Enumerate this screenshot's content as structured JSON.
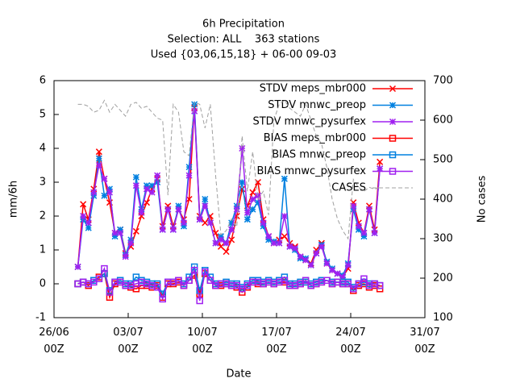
{
  "chart_data": {
    "type": "line",
    "title": "6h Precipitation",
    "subtitle": [
      "Selection: ALL    363 stations",
      "Used {03,06,15,18} + 06-00 09-03"
    ],
    "xlabel": "Date",
    "ylabel": "mm/6h",
    "y2label": "No cases",
    "xlim": [
      0,
      35
    ],
    "xticks": [
      {
        "value": 0,
        "label": "26/06\n00Z"
      },
      {
        "value": 7,
        "label": "03/07\n00Z"
      },
      {
        "value": 14,
        "label": "10/07\n00Z"
      },
      {
        "value": 21,
        "label": "17/07\n00Z"
      },
      {
        "value": 28,
        "label": "24/07\n00Z"
      },
      {
        "value": 35,
        "label": "31/07\n00Z"
      }
    ],
    "ylim": [
      -1,
      6
    ],
    "yticks": [
      -1,
      0,
      1,
      2,
      3,
      4,
      5,
      6
    ],
    "y2lim": [
      100,
      700
    ],
    "y2ticks": [
      100,
      200,
      300,
      400,
      500,
      600,
      700
    ],
    "legend": "upper right",
    "x": [
      2.25,
      2.75,
      3.25,
      3.75,
      4.25,
      4.75,
      5.25,
      5.75,
      6.25,
      6.75,
      7.25,
      7.75,
      8.25,
      8.75,
      9.25,
      9.75,
      10.25,
      10.75,
      11.25,
      11.75,
      12.25,
      12.75,
      13.25,
      13.75,
      14.25,
      14.75,
      15.25,
      15.75,
      16.25,
      16.75,
      17.25,
      17.75,
      18.25,
      18.75,
      19.25,
      19.75,
      20.25,
      20.75,
      21.25,
      21.75,
      22.25,
      22.75,
      23.25,
      23.75,
      24.25,
      24.75,
      25.25,
      25.75,
      26.25,
      26.75,
      27.25,
      27.75,
      28.25,
      28.75,
      29.25,
      29.75,
      30.25,
      30.75
    ],
    "series": [
      {
        "name": "STDV meps_mbr000",
        "color": "#ff0000",
        "marker": "x",
        "values": [
          0.5,
          2.35,
          1.9,
          2.8,
          3.9,
          3.1,
          2.4,
          1.5,
          1.6,
          0.9,
          1.1,
          1.55,
          2.0,
          2.4,
          2.8,
          3.1,
          1.7,
          2.3,
          1.7,
          2.2,
          1.9,
          2.5,
          5.2,
          2.0,
          1.8,
          2.0,
          1.5,
          1.1,
          0.95,
          1.3,
          2.0,
          2.8,
          2.3,
          2.7,
          3.0,
          1.9,
          1.4,
          1.2,
          1.3,
          1.4,
          1.2,
          1.1,
          0.8,
          0.7,
          0.6,
          1.0,
          1.2,
          0.6,
          0.4,
          0.3,
          0.2,
          0.45,
          2.4,
          1.8,
          1.5,
          2.3,
          1.6,
          3.6
        ]
      },
      {
        "name": "STDV mnwc_preop",
        "color": "#0080e0",
        "marker": "star",
        "values": [
          0.5,
          1.9,
          1.65,
          2.6,
          3.7,
          2.6,
          2.8,
          1.4,
          1.6,
          0.85,
          1.3,
          3.15,
          2.2,
          2.9,
          2.9,
          3.0,
          1.6,
          2.2,
          1.6,
          2.3,
          1.7,
          3.45,
          5.3,
          1.9,
          2.5,
          1.8,
          1.2,
          1.4,
          1.2,
          1.8,
          2.3,
          3.0,
          1.9,
          2.2,
          2.4,
          1.7,
          1.3,
          1.25,
          1.2,
          3.1,
          1.1,
          1.0,
          0.75,
          0.75,
          0.55,
          0.9,
          1.15,
          0.65,
          0.45,
          0.3,
          0.25,
          0.6,
          2.2,
          1.6,
          1.4,
          2.2,
          1.5,
          3.4
        ]
      },
      {
        "name": "STDV mnwc_pysurfex",
        "color": "#a020f0",
        "marker": "star",
        "values": [
          0.5,
          2.0,
          1.8,
          2.7,
          3.5,
          3.1,
          2.7,
          1.5,
          1.5,
          0.8,
          1.2,
          2.9,
          2.1,
          2.8,
          2.7,
          3.2,
          1.6,
          2.2,
          1.6,
          2.2,
          1.8,
          3.2,
          5.1,
          1.9,
          2.3,
          1.8,
          1.2,
          1.3,
          1.2,
          1.6,
          2.2,
          4.0,
          2.1,
          2.5,
          2.6,
          1.8,
          1.4,
          1.2,
          1.2,
          2.0,
          1.1,
          1.05,
          0.8,
          0.7,
          0.55,
          0.9,
          1.1,
          0.6,
          0.4,
          0.3,
          0.2,
          0.55,
          2.3,
          1.7,
          1.5,
          2.2,
          1.5,
          3.4
        ]
      },
      {
        "name": "BIAS meps_mbr000",
        "color": "#ff0000",
        "marker": "square",
        "values": [
          0.0,
          0.05,
          -0.05,
          0.1,
          0.2,
          0.3,
          -0.4,
          0.0,
          0.05,
          -0.05,
          -0.1,
          -0.15,
          -0.05,
          -0.05,
          -0.1,
          -0.05,
          -0.4,
          0.0,
          0.0,
          0.05,
          -0.05,
          0.1,
          0.25,
          -0.3,
          0.3,
          0.1,
          -0.05,
          -0.05,
          0.0,
          -0.05,
          -0.1,
          -0.25,
          -0.1,
          0.05,
          0.0,
          0.0,
          0.05,
          0.0,
          0.05,
          0.05,
          -0.05,
          -0.05,
          0.0,
          0.05,
          -0.05,
          0.0,
          0.05,
          0.1,
          0.0,
          0.05,
          0.0,
          0.0,
          -0.2,
          -0.05,
          0.0,
          -0.1,
          -0.05,
          -0.15
        ]
      },
      {
        "name": "BIAS mnwc_preop",
        "color": "#0080e0",
        "marker": "square",
        "values": [
          0.0,
          0.05,
          0.0,
          0.1,
          0.15,
          0.3,
          -0.2,
          0.05,
          0.1,
          0.0,
          0.0,
          0.2,
          0.1,
          0.05,
          0.0,
          0.0,
          -0.3,
          0.05,
          0.05,
          0.1,
          0.0,
          0.2,
          0.5,
          -0.2,
          0.4,
          0.2,
          0.0,
          0.0,
          0.05,
          0.0,
          0.0,
          -0.1,
          0.0,
          0.1,
          0.1,
          0.05,
          0.1,
          0.05,
          0.1,
          0.2,
          0.0,
          0.0,
          0.05,
          0.05,
          0.0,
          0.05,
          0.1,
          0.1,
          0.05,
          0.05,
          0.05,
          0.05,
          -0.1,
          0.0,
          0.05,
          0.0,
          0.0,
          -0.05
        ]
      },
      {
        "name": "BIAS mnwc_pysurfex",
        "color": "#a020f0",
        "marker": "square",
        "values": [
          0.0,
          0.05,
          0.0,
          0.05,
          0.15,
          0.45,
          -0.25,
          0.05,
          0.05,
          -0.05,
          -0.05,
          0.0,
          0.05,
          0.0,
          -0.05,
          -0.1,
          -0.45,
          0.05,
          0.05,
          0.1,
          -0.05,
          0.1,
          0.4,
          -0.5,
          0.35,
          0.1,
          -0.05,
          0.0,
          0.0,
          -0.05,
          -0.05,
          -0.15,
          -0.05,
          0.05,
          0.05,
          0.0,
          0.05,
          0.0,
          0.05,
          0.1,
          -0.05,
          -0.05,
          0.0,
          0.1,
          -0.05,
          0.0,
          0.05,
          0.1,
          0.0,
          0.05,
          0.0,
          0.0,
          -0.15,
          0.0,
          0.15,
          -0.05,
          0.0,
          -0.05
        ]
      },
      {
        "name": "CASES",
        "color": "#a0a0a0",
        "dash": true,
        "axis": "y2",
        "values": [
          640,
          640,
          635,
          620,
          625,
          650,
          620,
          640,
          625,
          610,
          640,
          645,
          630,
          635,
          620,
          605,
          600,
          410,
          640,
          620,
          520,
          510,
          645,
          640,
          580,
          640,
          460,
          310,
          320,
          350,
          330,
          560,
          420,
          520,
          400,
          420,
          360,
          600,
          640,
          650,
          630,
          620,
          610,
          640,
          600,
          560,
          540,
          480,
          400,
          350,
          320,
          300,
          450,
          430,
          420,
          430,
          425,
          430
        ]
      }
    ]
  }
}
